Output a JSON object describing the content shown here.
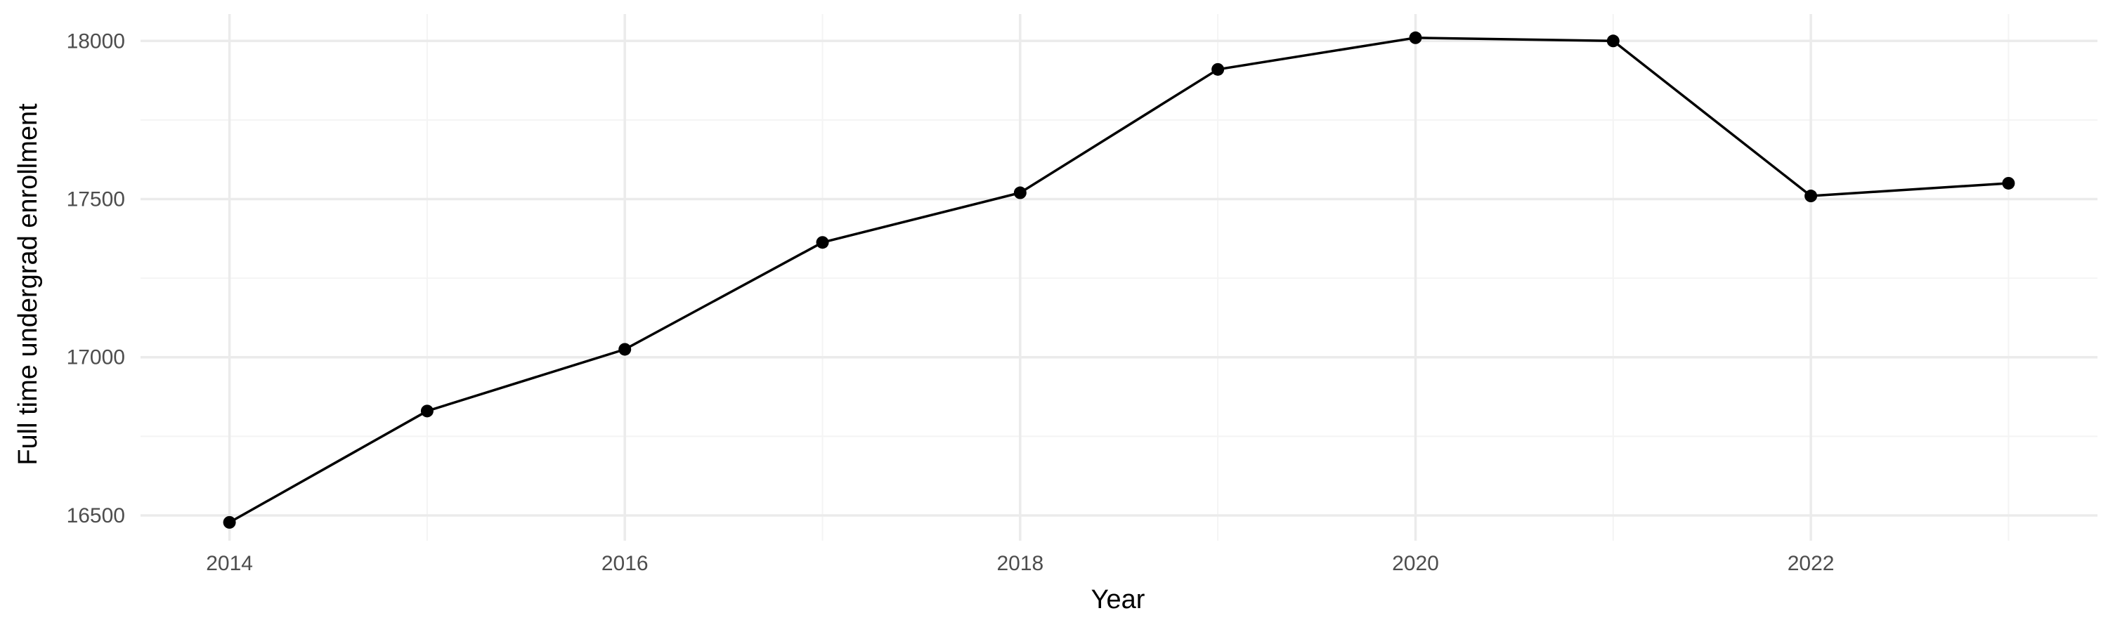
{
  "chart_data": {
    "type": "line",
    "title": "",
    "xlabel": "Year",
    "ylabel": "Full time undergrad enrollment",
    "x": [
      2014,
      2015,
      2016,
      2017,
      2018,
      2019,
      2020,
      2021,
      2022,
      2023
    ],
    "series": [
      {
        "values": [
          16478,
          16830,
          17025,
          17363,
          17520,
          17910,
          18010,
          18000,
          17510,
          17550
        ]
      }
    ],
    "xlim": [
      2013.55,
      2023.45
    ],
    "ylim": [
      16420,
      18085
    ],
    "x_ticks": [
      2014,
      2016,
      2018,
      2020,
      2022
    ],
    "x_tick_labels": [
      "2014",
      "2016",
      "2018",
      "2020",
      "2022"
    ],
    "y_ticks": [
      16500,
      17000,
      17500,
      18000
    ],
    "y_tick_labels": [
      "16500",
      "17000",
      "17500",
      "18000"
    ],
    "grid": true,
    "legend": "none",
    "colors": {
      "line": "#000000",
      "point": "#000000",
      "grid": "#ebebeb",
      "text": "#4d4d4d",
      "background": "#ffffff"
    }
  }
}
